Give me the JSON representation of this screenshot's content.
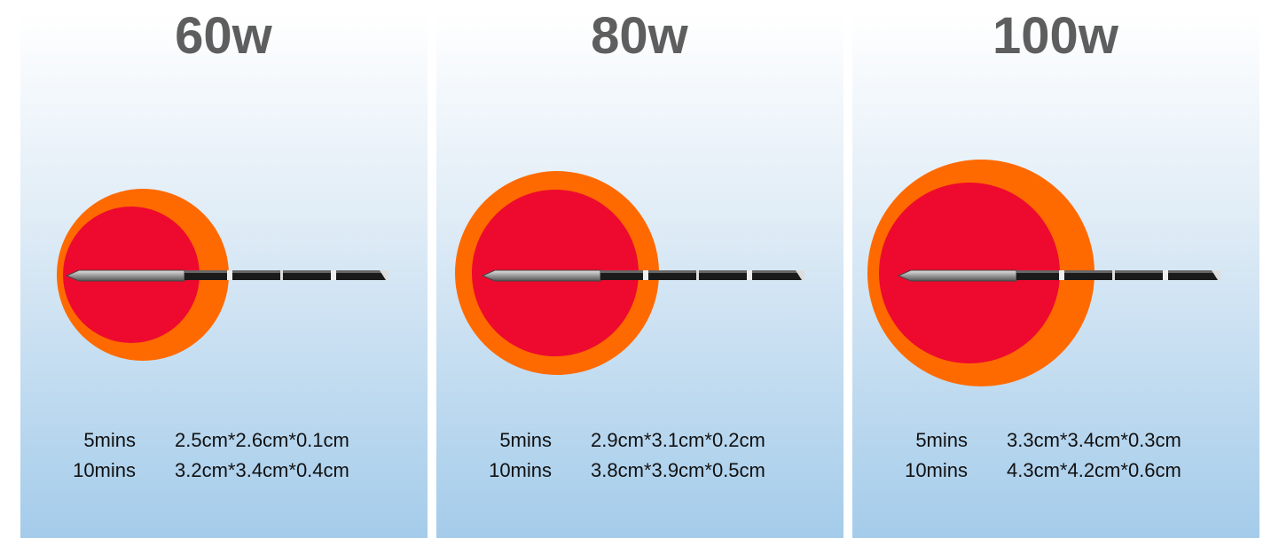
{
  "panels": [
    {
      "title": "60w",
      "rows": [
        [
          "5mins",
          "2.5cm*2.6cm*0.1cm"
        ],
        [
          "10mins",
          "3.2cm*3.4cm*0.4cm"
        ]
      ]
    },
    {
      "title": "80w",
      "rows": [
        [
          "5mins",
          "2.9cm*3.1cm*0.2cm"
        ],
        [
          "10mins",
          "3.8cm*3.9cm*0.5cm"
        ]
      ]
    },
    {
      "title": "100w",
      "rows": [
        [
          "5mins",
          "3.3cm*3.4cm*0.3cm"
        ],
        [
          "10mins",
          "4.3cm*4.2cm*0.6cm"
        ]
      ]
    }
  ]
}
